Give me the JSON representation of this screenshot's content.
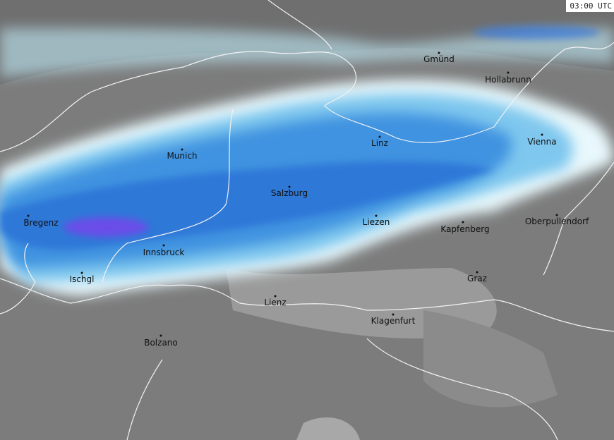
{
  "timestamp": "03:00 UTC",
  "cities": [
    "Gmünd",
    "Hollabrunn",
    "Munich",
    "Linz",
    "Vienna",
    "Salzburg",
    "Bregenz",
    "Liezen",
    "Kapfenberg",
    "Oberpullendorf",
    "Innsbruck",
    "Ischgl",
    "Graz",
    "Lienz",
    "Klagenfurt",
    "Bolzano"
  ]
}
